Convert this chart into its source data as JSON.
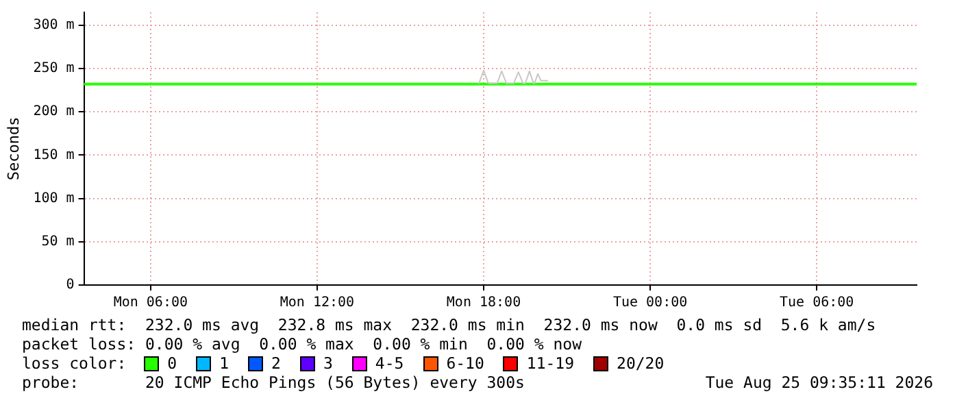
{
  "chart_data": {
    "type": "line",
    "ylabel": "Seconds",
    "x": [
      "2026-08-24T03:36",
      "2026-08-25T09:36"
    ],
    "xlim": [
      "2026-08-24T03:36",
      "2026-08-25T09:36"
    ],
    "xticks": [
      {
        "value": "2026-08-24T06:00",
        "label": "Mon 06:00"
      },
      {
        "value": "2026-08-24T12:00",
        "label": "Mon 12:00"
      },
      {
        "value": "2026-08-24T18:00",
        "label": "Mon 18:00"
      },
      {
        "value": "2026-08-25T00:00",
        "label": "Tue 00:00"
      },
      {
        "value": "2026-08-25T06:00",
        "label": "Tue 06:00"
      }
    ],
    "ylim": [
      0,
      315
    ],
    "yticks": [
      0,
      {
        "value": 50,
        "label": "50 m"
      },
      {
        "value": 100,
        "label": "100 m"
      },
      {
        "value": 150,
        "label": "150 m"
      },
      {
        "value": 200,
        "label": "200 m"
      },
      {
        "value": 250,
        "label": "250 m"
      },
      {
        "value": 300,
        "label": "300 m"
      }
    ],
    "series": [
      {
        "color": "#c8c8c8",
        "x": [
          "2026-08-24T17:50",
          "2026-08-24T18:00",
          "2026-08-24T18:10",
          "2026-08-24T18:29",
          "2026-08-24T18:39",
          "2026-08-24T18:49",
          "2026-08-24T19:05",
          "2026-08-24T19:15",
          "2026-08-24T19:25",
          "2026-08-24T19:30",
          "2026-08-24T19:39",
          "2026-08-24T19:48",
          "2026-08-24T19:50",
          "2026-08-24T19:57",
          "2026-08-24T20:04",
          "2026-08-24T20:18"
        ],
        "values": [
          233,
          248,
          233,
          233,
          247,
          233,
          233,
          246,
          233,
          233,
          247,
          233,
          233,
          244,
          236,
          236
        ]
      },
      {
        "name": "0",
        "color": "#26ff00",
        "values": [
          232,
          232
        ]
      },
      {
        "name": "1",
        "color": "#00b8ff",
        "values": [
          null,
          null
        ]
      },
      {
        "name": "2",
        "color": "#0059ff",
        "values": [
          null,
          null
        ]
      },
      {
        "name": "3",
        "color": "#5e00ff",
        "values": [
          null,
          null
        ]
      },
      {
        "name": "4-5",
        "color": "#ff00ff",
        "values": [
          null,
          null
        ]
      },
      {
        "name": "6-10",
        "color": "#ff5500",
        "values": [
          null,
          null
        ]
      },
      {
        "name": "11-19",
        "color": "#ff0000",
        "values": [
          null,
          null
        ]
      },
      {
        "name": "20/20",
        "color": "#a10000",
        "values": [
          null,
          null
        ]
      }
    ],
    "legend_title": "loss color:",
    "legend": "bottom",
    "grid": true,
    "marker": "none",
    "line_style": "solid",
    "annotations": [
      "median rtt:  232.0 ms avg  232.8 ms max  232.0 ms min  232.0 ms now  0.0 ms sd  5.6 k am/s",
      "packet loss: 0.00 % avg  0.00 % max  0.00 % min  0.00 % now",
      "probe:       20 ICMP Echo Pings (56 Bytes) every 300s",
      "Tue Aug 25 09:35:11 2026"
    ]
  }
}
